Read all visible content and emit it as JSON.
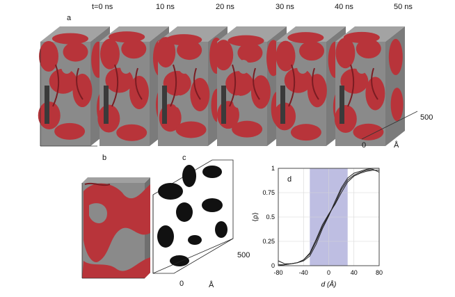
{
  "panels": {
    "a": {
      "label": "a",
      "times": [
        "t=0 ns",
        "10 ns",
        "20 ns",
        "30 ns",
        "40 ns",
        "50 ns"
      ],
      "axis_ticks": [
        "0",
        "500"
      ],
      "axis_unit": "Å"
    },
    "b": {
      "label": "b"
    },
    "c": {
      "label": "c",
      "axis_ticks": [
        "0",
        "500"
      ],
      "axis_unit": "Å"
    },
    "d": {
      "label": "d"
    }
  },
  "colors": {
    "membrane": "#b8343a",
    "membrane_dark": "#7a1c22",
    "slab": "#8a8a8a",
    "band": "#b3b3dd"
  },
  "chart_data": {
    "type": "line",
    "xlabel": "d (Å)",
    "ylabel": "⟨ρ⟩",
    "xlim": [
      -80,
      80
    ],
    "ylim": [
      0,
      1
    ],
    "xticks": [
      -80,
      -40,
      0,
      40,
      80
    ],
    "yticks": [
      0,
      0.25,
      0.5,
      0.75,
      1
    ],
    "ytick_labels": [
      "0",
      "0.25",
      "0.5",
      "0.75",
      "1"
    ],
    "shaded_region": [
      -30,
      30
    ],
    "grid": true,
    "series": [
      {
        "x": [
          -80,
          -70,
          -60,
          -50,
          -40,
          -30,
          -20,
          -10,
          0,
          10,
          20,
          30,
          40,
          50,
          60,
          70,
          80
        ],
        "values": [
          0.05,
          0.02,
          0.02,
          0.03,
          0.06,
          0.12,
          0.25,
          0.4,
          0.52,
          0.64,
          0.78,
          0.88,
          0.93,
          0.96,
          0.98,
          0.99,
          0.96
        ]
      },
      {
        "x": [
          -80,
          -70,
          -60,
          -50,
          -40,
          -30,
          -20,
          -10,
          0,
          10,
          20,
          30,
          40,
          50,
          60,
          70,
          80
        ],
        "values": [
          0.01,
          0.01,
          0.02,
          0.03,
          0.05,
          0.1,
          0.22,
          0.38,
          0.51,
          0.66,
          0.8,
          0.9,
          0.95,
          0.97,
          0.99,
          1.0,
          1.0
        ]
      },
      {
        "x": [
          -80,
          -70,
          -60,
          -50,
          -40,
          -30,
          -20,
          -10,
          0,
          10,
          20,
          30,
          40,
          50,
          60,
          70,
          80
        ],
        "values": [
          0.0,
          0.01,
          0.02,
          0.03,
          0.06,
          0.13,
          0.27,
          0.42,
          0.53,
          0.63,
          0.75,
          0.86,
          0.92,
          0.95,
          0.97,
          0.98,
          0.98
        ]
      }
    ]
  }
}
